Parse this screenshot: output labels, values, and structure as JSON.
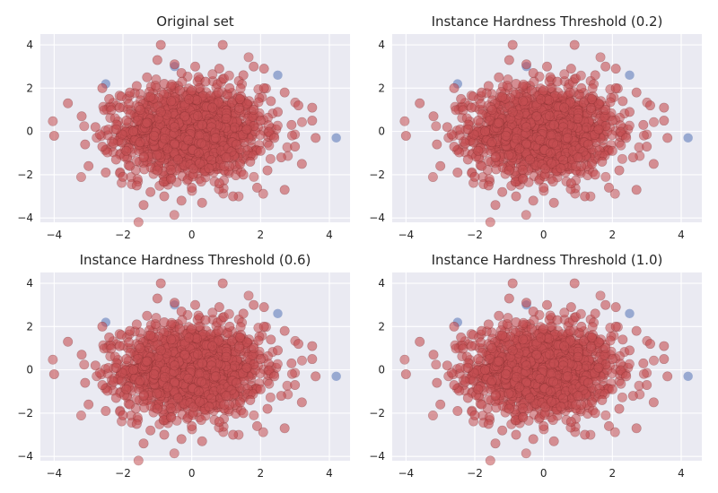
{
  "chart_data": [
    {
      "type": "scatter",
      "title": "Original set",
      "xlabel": "",
      "ylabel": "",
      "xlim": [
        -4.4,
        4.6
      ],
      "ylim": [
        -4.2,
        4.5
      ],
      "xticks": [
        -4,
        -2,
        0,
        2,
        4
      ],
      "yticks": [
        -4,
        -2,
        0,
        2,
        4
      ],
      "grid": true
    },
    {
      "type": "scatter",
      "title": "Instance Hardness Threshold (0.2)",
      "xlabel": "",
      "ylabel": "",
      "xlim": [
        -4.4,
        4.6
      ],
      "ylim": [
        -4.2,
        4.5
      ],
      "xticks": [
        -4,
        -2,
        0,
        2,
        4
      ],
      "yticks": [
        -4,
        -2,
        0,
        2,
        4
      ],
      "grid": true
    },
    {
      "type": "scatter",
      "title": "Instance Hardness Threshold (0.6)",
      "xlabel": "",
      "ylabel": "",
      "xlim": [
        -4.4,
        4.6
      ],
      "ylim": [
        -4.2,
        4.5
      ],
      "xticks": [
        -4,
        -2,
        0,
        2,
        4
      ],
      "yticks": [
        -4,
        -2,
        0,
        2,
        4
      ],
      "grid": true
    },
    {
      "type": "scatter",
      "title": "Instance Hardness Threshold (1.0)",
      "xlabel": "",
      "ylabel": "",
      "xlim": [
        -4.4,
        4.6
      ],
      "ylim": [
        -4.2,
        4.5
      ],
      "xticks": [
        -4,
        -2,
        0,
        2,
        4
      ],
      "yticks": [
        -4,
        -2,
        0,
        2,
        4
      ],
      "grid": true
    }
  ],
  "series_shared": {
    "majority": {
      "color": "#c44e52",
      "edge": "#7a2a2c",
      "points": [
        [
          -4.0,
          -0.2
        ],
        [
          -3.6,
          1.3
        ],
        [
          -3.2,
          0.7
        ],
        [
          -3.1,
          -0.6
        ],
        [
          -3.0,
          -1.6
        ],
        [
          -2.8,
          0.2
        ],
        [
          -2.6,
          -0.7
        ],
        [
          -2.5,
          -1.9
        ],
        [
          -2.4,
          1.5
        ],
        [
          -2.2,
          0.1
        ],
        [
          -2.2,
          -1.3
        ],
        [
          -2.1,
          1.1
        ],
        [
          -2.0,
          -2.1
        ],
        [
          -1.9,
          0.5
        ],
        [
          -1.9,
          -0.9
        ],
        [
          -1.8,
          1.8
        ],
        [
          -1.8,
          -1.6
        ],
        [
          -1.7,
          0.0
        ],
        [
          -1.6,
          2.1
        ],
        [
          -1.6,
          -2.5
        ],
        [
          -1.5,
          1.0
        ],
        [
          -1.5,
          -0.5
        ],
        [
          -1.4,
          -1.2
        ],
        [
          -1.3,
          2.5
        ],
        [
          -1.3,
          0.4
        ],
        [
          -1.2,
          -2.8
        ],
        [
          -1.2,
          1.6
        ],
        [
          -1.1,
          -0.2
        ],
        [
          -1.0,
          -1.8
        ],
        [
          -1.0,
          3.3
        ],
        [
          -0.9,
          4.0
        ],
        [
          -0.9,
          0.9
        ],
        [
          -0.8,
          -3.0
        ],
        [
          -0.8,
          2.2
        ],
        [
          -0.7,
          -0.8
        ],
        [
          -0.6,
          1.4
        ],
        [
          -0.6,
          -2.2
        ],
        [
          -0.5,
          0.2
        ],
        [
          -0.5,
          3.1
        ],
        [
          -0.4,
          -1.3
        ],
        [
          -0.3,
          2.7
        ],
        [
          -0.3,
          -3.2
        ],
        [
          -0.2,
          0.7
        ],
        [
          -0.1,
          -0.4
        ],
        [
          0.0,
          1.9
        ],
        [
          0.0,
          -2.6
        ],
        [
          0.1,
          3.0
        ],
        [
          0.2,
          -1.0
        ],
        [
          0.3,
          0.3
        ],
        [
          0.3,
          -3.3
        ],
        [
          0.4,
          2.3
        ],
        [
          0.5,
          -1.7
        ],
        [
          0.6,
          1.1
        ],
        [
          0.7,
          -0.3
        ],
        [
          0.8,
          2.9
        ],
        [
          0.8,
          -2.4
        ],
        [
          0.9,
          4.0
        ],
        [
          1.0,
          0.6
        ],
        [
          1.0,
          -1.2
        ],
        [
          1.1,
          2.0
        ],
        [
          1.2,
          -3.0
        ],
        [
          1.3,
          -0.6
        ],
        [
          1.4,
          1.5
        ],
        [
          1.5,
          -2.0
        ],
        [
          1.5,
          2.6
        ],
        [
          1.6,
          0.1
        ],
        [
          1.7,
          -1.4
        ],
        [
          1.8,
          1.0
        ],
        [
          1.9,
          -2.6
        ],
        [
          2.0,
          0.5
        ],
        [
          2.0,
          -0.9
        ],
        [
          2.1,
          2.0
        ],
        [
          2.2,
          -1.8
        ],
        [
          2.3,
          1.4
        ],
        [
          2.4,
          -0.3
        ],
        [
          2.5,
          0.9
        ],
        [
          2.6,
          -1.2
        ],
        [
          2.7,
          1.8
        ],
        [
          2.7,
          -2.7
        ],
        [
          2.9,
          0.3
        ],
        [
          3.0,
          -0.7
        ],
        [
          3.1,
          1.2
        ],
        [
          3.2,
          -1.5
        ],
        [
          3.5,
          0.5
        ],
        [
          3.6,
          -0.3
        ],
        [
          3.5,
          1.1
        ],
        [
          2.1,
          2.9
        ],
        [
          -2.6,
          2.0
        ],
        [
          1.8,
          3.0
        ],
        [
          -1.4,
          -3.4
        ]
      ]
    },
    "minority": {
      "color": "#8172b2",
      "fill": "#8a9ecb",
      "points": [
        [
          -2.5,
          2.2
        ],
        [
          -0.5,
          3.0
        ],
        [
          2.5,
          2.6
        ],
        [
          4.2,
          -0.3
        ]
      ]
    }
  }
}
